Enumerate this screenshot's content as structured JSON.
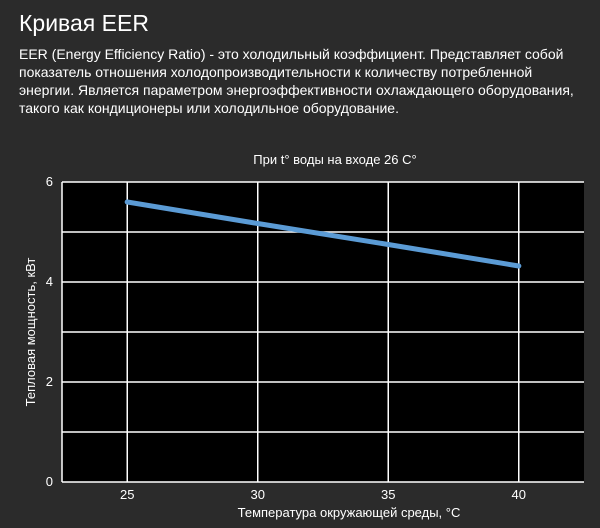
{
  "page": {
    "title": "Кривая EER",
    "description": "EER (Energy Efficiency Ratio) - это холодильный коэффициент. Представляет собой показатель отношения холодопроизводительности к количеству потребленной энергии. Является параметром энергоэффективности охлаждающего оборудования, такого как кондиционеры или холодильное оборудование."
  },
  "colors": {
    "background": "#2b2b2b",
    "plot_background": "#000000",
    "grid": "#ffffff",
    "line": "#5b9bd5",
    "text": "#ffffff"
  },
  "chart_data": {
    "type": "line",
    "title": "При t° воды на входе 26 С°",
    "xlabel": "Температура окружающей среды, °С",
    "ylabel": "Тепловая мощность, кВт",
    "xlim": [
      22.5,
      42.5
    ],
    "ylim": [
      0,
      6
    ],
    "xticks": [
      25,
      30,
      35,
      40
    ],
    "yticks": [
      0,
      2,
      4,
      6
    ],
    "x_gridlines": [
      25,
      30,
      35,
      40
    ],
    "y_gridlines": [
      1,
      2,
      3,
      4,
      5,
      6
    ],
    "grid": true,
    "legend": "none",
    "series": [
      {
        "x": [
          25,
          30,
          35,
          40
        ],
        "y": [
          5.6,
          5.17,
          4.75,
          4.32
        ]
      }
    ]
  }
}
